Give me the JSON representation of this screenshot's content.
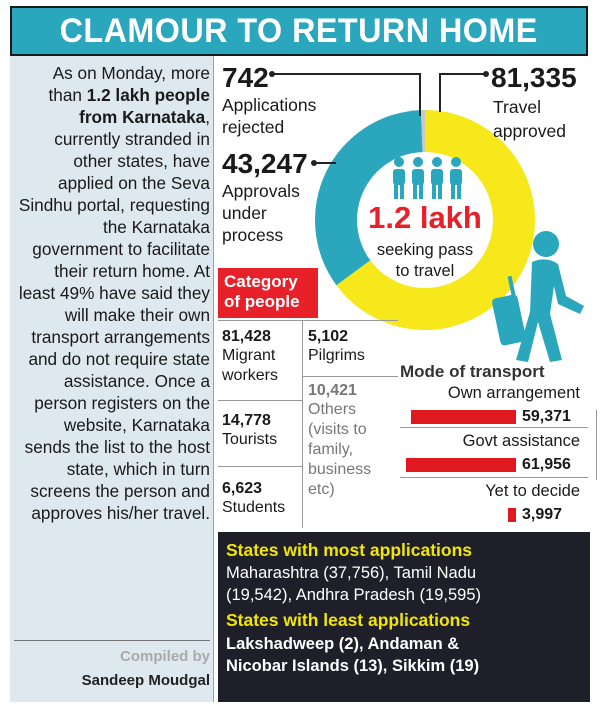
{
  "title": "CLAMOUR TO RETURN HOME",
  "intro": {
    "p1": "As on Monday, more than ",
    "bold1": "1.2 lakh people from Karnataka",
    "p2": ", currently stranded in other states, have applied on the Seva Sindhu portal, requesting the Karnataka government to facilitate their return home. At least 49% have said they will make their own transport arrangements and do not require state assistance. Once a person registers on the website, Karnataka sends the list to the host state, which in turn screens the person and approves his/her travel."
  },
  "credit": {
    "compiled_by": "Compiled by",
    "author": "Sandeep Moudgal"
  },
  "applications": {
    "rejected_value": "742",
    "rejected_label_1": "Applications",
    "rejected_label_2": "rejected",
    "approved_value": "81,335",
    "approved_label_1": "Travel",
    "approved_label_2": "approved",
    "pending_value": "43,247",
    "pending_label_1": "Approvals",
    "pending_label_2": "under",
    "pending_label_3": "process",
    "center_value": "1.2 lakh",
    "center_label_1": "seeking pass",
    "center_label_2": "to travel"
  },
  "category": {
    "title_1": "Category",
    "title_2": "of people",
    "items": [
      {
        "value": "81,428",
        "label_1": "Migrant",
        "label_2": "workers"
      },
      {
        "value": "5,102",
        "label_1": "Pilgrims"
      },
      {
        "value": "14,778",
        "label_1": "Tourists"
      },
      {
        "value": "10,421",
        "label_1": "Others",
        "label_2": "(visits to",
        "label_3": "family,",
        "label_4": "business",
        "label_5": "etc)"
      },
      {
        "value": "6,623",
        "label_1": "Students"
      }
    ]
  },
  "transport": {
    "title": "Mode of transport",
    "items": [
      {
        "label": "Own arrangement",
        "value": "59,371"
      },
      {
        "label": "Govt assistance",
        "value": "61,956"
      },
      {
        "label": "Yet to decide",
        "value": "3,997"
      }
    ]
  },
  "states": {
    "most_title": "States with most applications",
    "most_line_1": "Maharashtra (37,756), Tamil Nadu",
    "most_line_2": "(19,542), Andhra Pradesh (19,595)",
    "least_title": "States with least applications",
    "least_line_1": "Lakshadweep (2), Andaman &",
    "least_line_2": "Nicobar Islands (13), Sikkim (19)"
  },
  "colors": {
    "teal": "#2aa6bd",
    "yellow": "#f7e81c",
    "red": "#e8202a",
    "dark": "#1f1f2a",
    "grey": "#c8c8c8"
  },
  "chart_data": [
    {
      "type": "pie",
      "style": "donut",
      "categories": [
        "Travel approved",
        "Approvals under process",
        "Applications rejected"
      ],
      "values": [
        81335,
        43247,
        742
      ],
      "colors": [
        "#f7e81c",
        "#2aa6bd",
        "#c8c8c8"
      ]
    },
    {
      "type": "bar",
      "title": "Mode of transport",
      "orientation": "horizontal",
      "categories": [
        "Own arrangement",
        "Govt assistance",
        "Yet to decide"
      ],
      "values": [
        59371,
        61956,
        3997
      ],
      "color": "#e0181f"
    }
  ]
}
